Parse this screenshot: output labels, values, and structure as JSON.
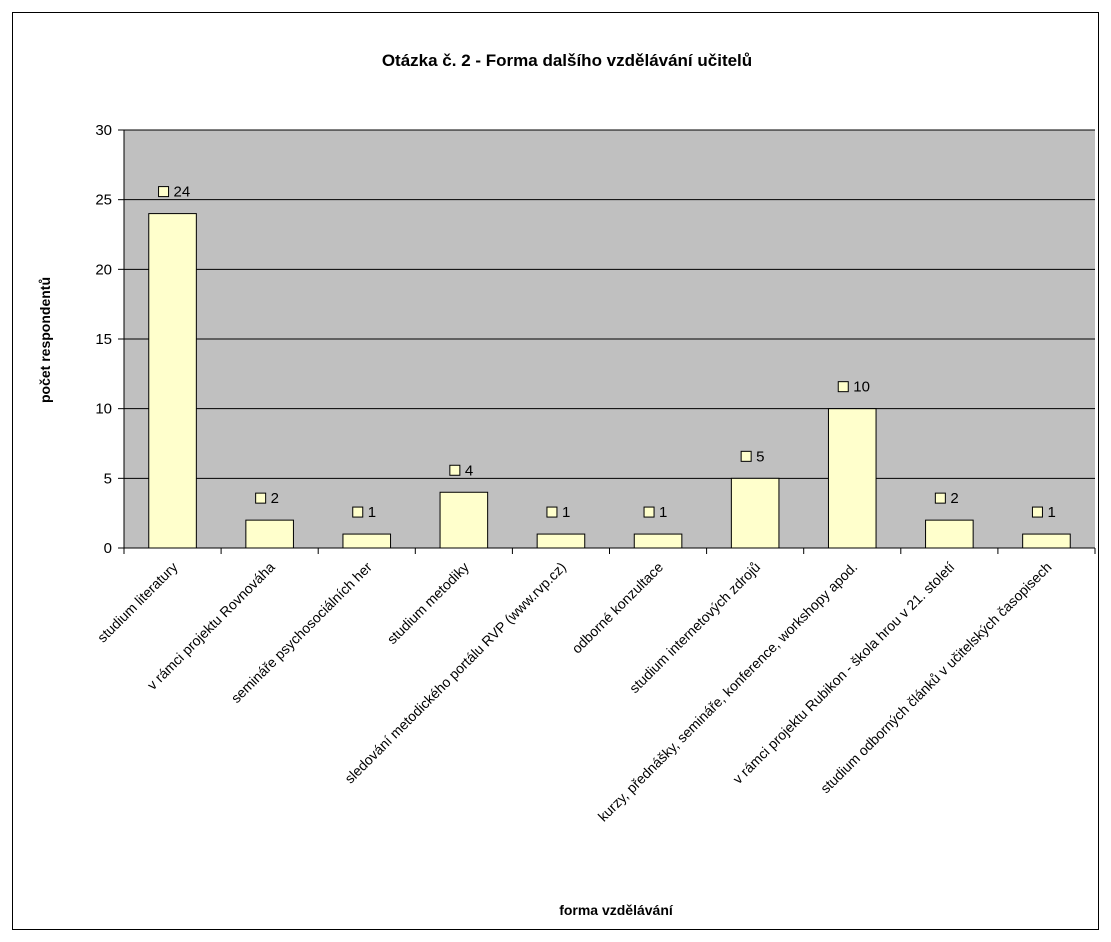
{
  "chart_data": {
    "type": "bar",
    "title": "Otázka č. 2 - Forma dalšího vzdělávání učitelů",
    "xlabel": "forma vzdělávání",
    "ylabel": "počet respondentů",
    "ylim": [
      0,
      30
    ],
    "yticks": [
      0,
      5,
      10,
      15,
      20,
      25,
      30
    ],
    "grid": true,
    "legend": "none",
    "categories": [
      "studium literatury",
      "v rámci projektu Rovnováha",
      "semináře psychosociálních her",
      "studium metodiky",
      "sledování metodického portálu RVP (www.rvp.cz)",
      "odborné konzultace",
      "studium internetových zdrojů",
      "kurzy, přednášky, semináře, konference, workshopy apod.",
      "v rámci projektu Rubikon - škola hrou v 21. století",
      "studium odborných článků v učitelských časopisech"
    ],
    "values": [
      24,
      2,
      1,
      4,
      1,
      1,
      5,
      10,
      2,
      1
    ],
    "colors": {
      "bar_fill": "#FFFFCC",
      "plot_background": "#C0C0C0",
      "grid": "#000000"
    }
  }
}
